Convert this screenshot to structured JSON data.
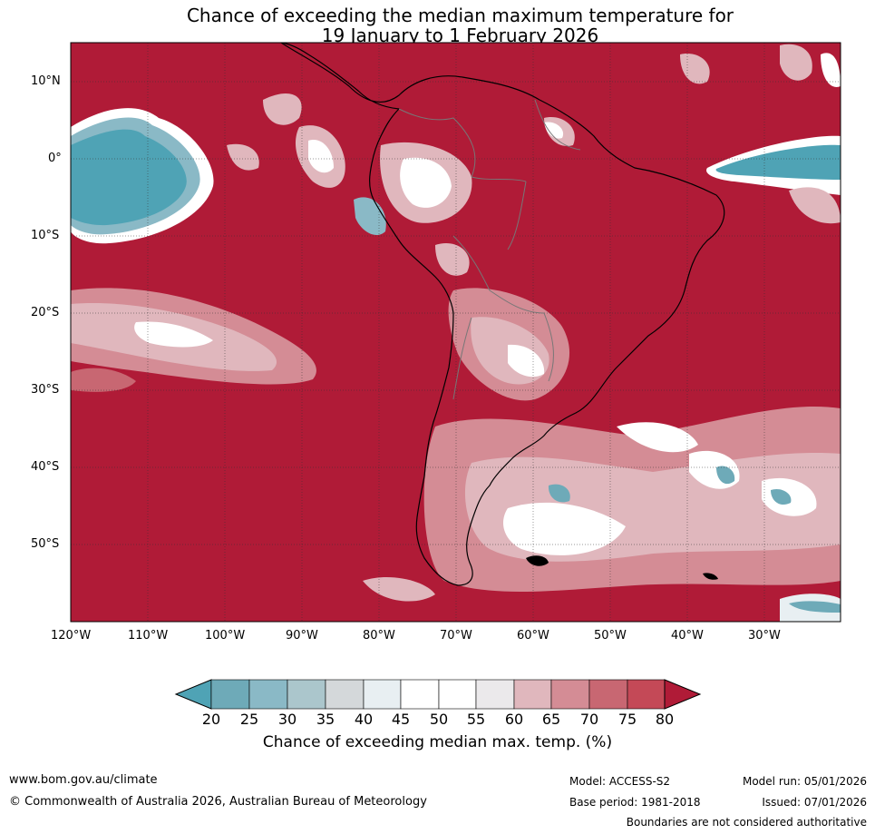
{
  "title": {
    "line1": "Chance of exceeding the median maximum temperature for",
    "line2": "19 January to 1 February 2026"
  },
  "axes": {
    "lat_labels": [
      "10°N",
      "0°",
      "10°S",
      "20°S",
      "30°S",
      "40°S",
      "50°S"
    ],
    "lon_labels": [
      "120°W",
      "110°W",
      "100°W",
      "90°W",
      "80°W",
      "70°W",
      "60°W",
      "50°W",
      "40°W",
      "30°W"
    ]
  },
  "colorbar": {
    "ticks": [
      "20",
      "25",
      "30",
      "35",
      "40",
      "45",
      "50",
      "55",
      "60",
      "65",
      "70",
      "75",
      "80"
    ],
    "colors": [
      "#4fa3b5",
      "#6eaab8",
      "#8ab9c6",
      "#abc6cc",
      "#d4d8da",
      "#e8eff2",
      "#ffffff",
      "#ffffff",
      "#ebe9eb",
      "#e0b7bd",
      "#d48c95",
      "#c86772",
      "#c44957",
      "#b01b37"
    ],
    "label": "Chance of exceeding median max. temp. (%)"
  },
  "footer": {
    "website": "www.bom.gov.au/climate",
    "copyright": "© Commonwealth of Australia 2026, Australian Bureau of Meteorology",
    "model": "Model: ACCESS-S2",
    "model_run": "Model run: 05/01/2026",
    "base_period": "Base period: 1981-2018",
    "issued": "Issued: 07/01/2026",
    "disclaimer": "Boundaries are not considered authoritative"
  }
}
